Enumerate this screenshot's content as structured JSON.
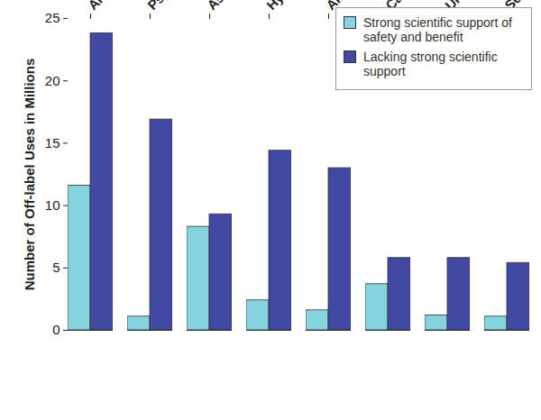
{
  "chart_data": {
    "type": "bar",
    "ylabel": "Number of Off-label Uses in Millions",
    "categories": [
      "Antibiotics",
      "Psychiatric",
      "Asthma",
      "Hypertension",
      "Allergy",
      "Cardiac",
      "Ulcer/Reflux",
      "Seizure"
    ],
    "series": [
      {
        "name": "Strong scientific support of safety and benefit",
        "color": "#86d3e0",
        "values": [
          11.6,
          1.1,
          8.3,
          2.4,
          1.6,
          3.7,
          1.2,
          1.1
        ]
      },
      {
        "name": "Lacking strong scientific support",
        "color": "#4149a3",
        "values": [
          23.8,
          16.9,
          9.3,
          14.4,
          13.0,
          5.8,
          5.8,
          5.4
        ]
      }
    ],
    "ylim": [
      0,
      25
    ],
    "yticks": [
      0,
      5,
      10,
      15,
      20,
      25
    ],
    "legend": "top-right",
    "grid": false
  }
}
